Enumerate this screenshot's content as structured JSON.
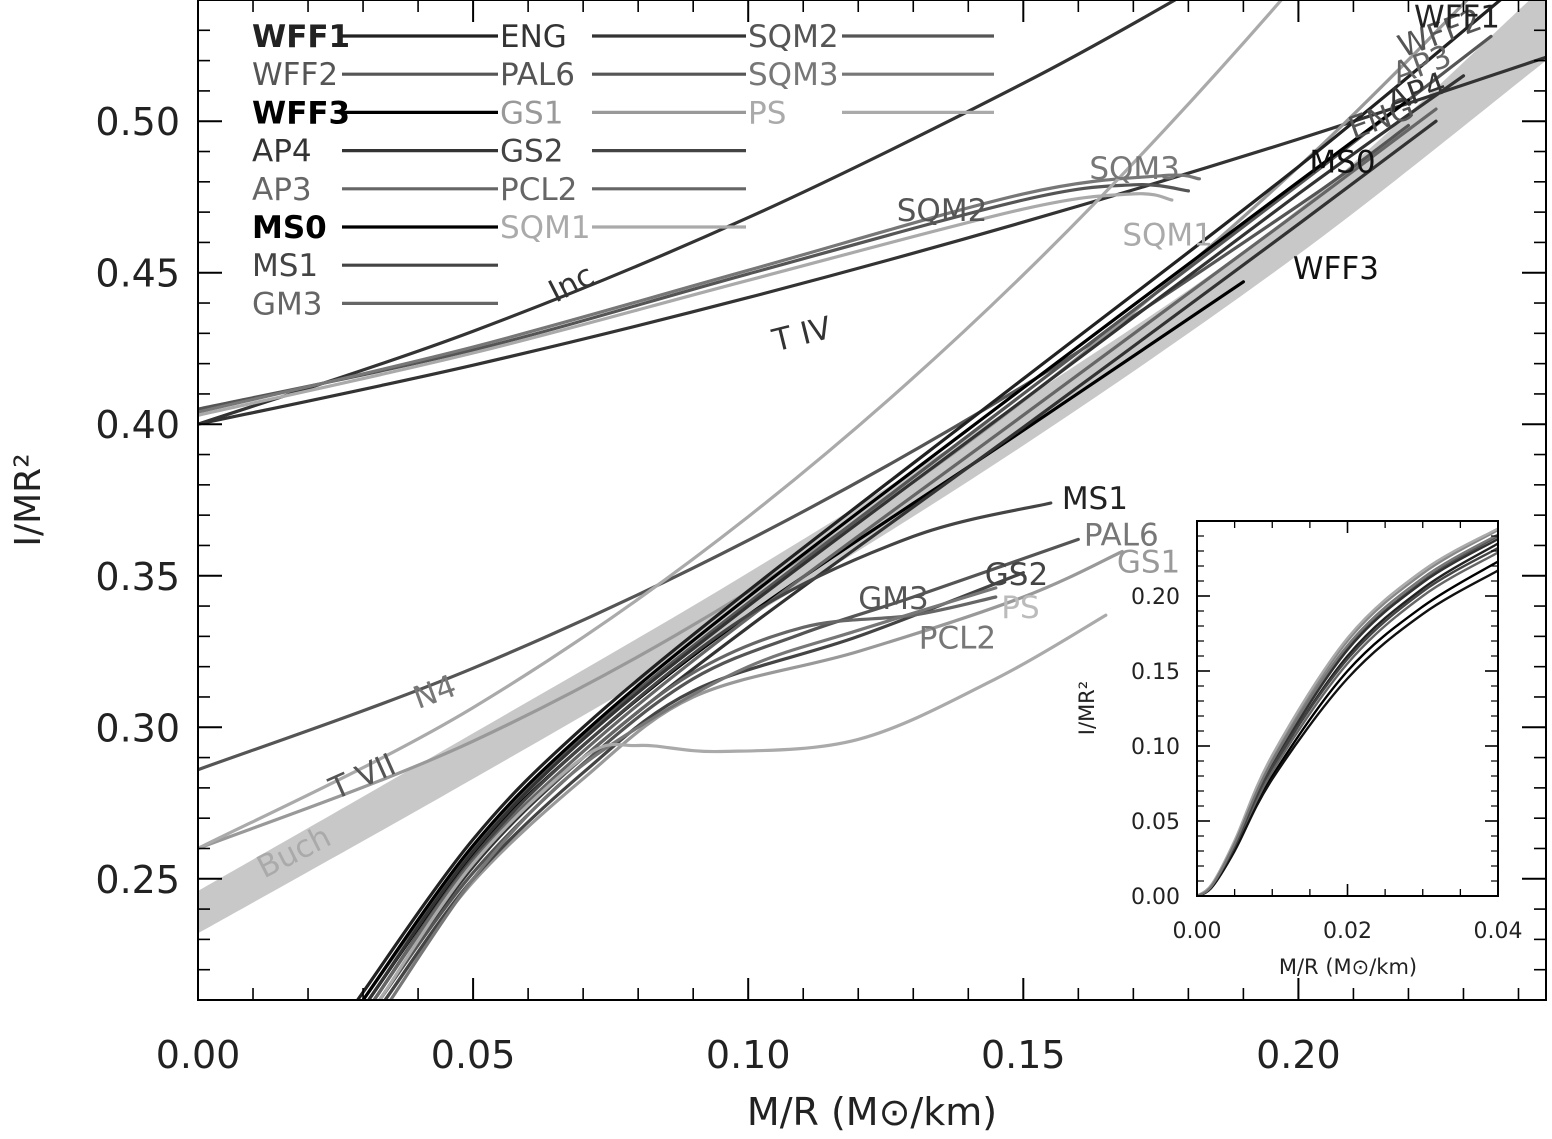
{
  "chart_data": [
    {
      "type": "line",
      "xlabel": "M/R (M⊙/km)",
      "ylabel": "I/MR²",
      "xlim": [
        0,
        0.245
      ],
      "ylim": [
        0.21,
        0.54
      ],
      "xticks": [
        0.0,
        0.05,
        0.1,
        0.15,
        0.2
      ],
      "xtick_labels": [
        "0.00",
        "0.05",
        "0.10",
        "0.15",
        "0.20"
      ],
      "yticks": [
        0.25,
        0.3,
        0.35,
        0.4,
        0.45,
        0.5
      ],
      "ytick_labels": [
        "0.25",
        "0.30",
        "0.35",
        "0.40",
        "0.45",
        "0.50"
      ],
      "grid": false,
      "legend_position": "top-left",
      "colors": {
        "black": "#111111",
        "dark": "#333333",
        "mid": "#555555",
        "gray": "#777777",
        "light": "#999999",
        "pale": "#b0b0b0",
        "band": "#c8c8c8"
      },
      "legend": [
        {
          "label": "WFF1",
          "color": "#222222"
        },
        {
          "label": "WFF2",
          "color": "#555555"
        },
        {
          "label": "WFF3",
          "color": "#000000"
        },
        {
          "label": "AP4",
          "color": "#333333"
        },
        {
          "label": "AP3",
          "color": "#666666"
        },
        {
          "label": "MS0",
          "color": "#000000"
        },
        {
          "label": "MS1",
          "color": "#444444"
        },
        {
          "label": "GM3",
          "color": "#666666"
        },
        {
          "label": "ENG",
          "color": "#333333"
        },
        {
          "label": "PAL6",
          "color": "#555555"
        },
        {
          "label": "GS1",
          "color": "#999999"
        },
        {
          "label": "GS2",
          "color": "#444444"
        },
        {
          "label": "PCL2",
          "color": "#666666"
        },
        {
          "label": "SQM1",
          "color": "#aaaaaa"
        },
        {
          "label": "SQM2",
          "color": "#555555"
        },
        {
          "label": "SQM3",
          "color": "#777777"
        },
        {
          "label": "PS",
          "color": "#aaaaaa"
        }
      ],
      "band": {
        "label": "",
        "x": [
          0.0,
          0.05,
          0.1,
          0.15,
          0.2,
          0.245
        ],
        "y_low": [
          0.232,
          0.283,
          0.336,
          0.393,
          0.456,
          0.52
        ],
        "y_high": [
          0.246,
          0.298,
          0.351,
          0.408,
          0.471,
          0.545
        ]
      },
      "series": [
        {
          "name": "Inc",
          "color": "#333333",
          "x": [
            0.0,
            0.05,
            0.1,
            0.15,
            0.18
          ],
          "y": [
            0.4,
            0.4307,
            0.4682,
            0.5125,
            0.5425
          ]
        },
        {
          "name": "T IV",
          "color": "#333333",
          "x": [
            0.0,
            0.05,
            0.1,
            0.15,
            0.2,
            0.245
          ],
          "y": [
            0.4,
            0.4195,
            0.4418,
            0.4667,
            0.4941,
            0.5211
          ]
        },
        {
          "name": "SQM2",
          "color": "#555555",
          "x": [
            0.0,
            0.05,
            0.1,
            0.15,
            0.17,
            0.18
          ],
          "y": [
            0.405,
            0.4245,
            0.4496,
            0.474,
            0.479,
            0.477
          ]
        },
        {
          "name": "SQM3",
          "color": "#777777",
          "x": [
            0.0,
            0.05,
            0.1,
            0.15,
            0.175,
            0.182
          ],
          "y": [
            0.404,
            0.4255,
            0.4508,
            0.476,
            0.482,
            0.481
          ]
        },
        {
          "name": "SQM1",
          "color": "#aaaaaa",
          "x": [
            0.0,
            0.05,
            0.1,
            0.15,
            0.17,
            0.177
          ],
          "y": [
            0.403,
            0.4235,
            0.4475,
            0.471,
            0.476,
            0.474
          ]
        },
        {
          "name": "N4",
          "color": "#555555",
          "x": [
            0.0,
            0.05,
            0.1,
            0.15,
            0.2,
            0.22
          ],
          "y": [
            0.286,
            0.3195,
            0.3617,
            0.4126,
            0.4722,
            0.4986
          ]
        },
        {
          "name": "T VII",
          "color": "#999999",
          "x": [
            0.0,
            0.05,
            0.1,
            0.15,
            0.2,
            0.245
          ],
          "y": [
            0.26,
            0.2954,
            0.3447,
            0.4078,
            0.4849,
            0.5667
          ]
        },
        {
          "name": "Buch",
          "color": "#aaaaaa",
          "x": [
            0.0,
            0.05,
            0.1,
            0.15,
            0.2,
            0.245
          ],
          "y": [
            0.26,
            0.3065,
            0.3695,
            0.4493,
            0.5465,
            0.6489
          ]
        },
        {
          "name": "WFF1",
          "color": "#222222",
          "x": [
            0.029,
            0.05,
            0.07,
            0.1,
            0.15,
            0.2,
            0.24
          ],
          "y": [
            0.21,
            0.263,
            0.3,
            0.345,
            0.415,
            0.485,
            0.545
          ]
        },
        {
          "name": "WFF2",
          "color": "#555555",
          "x": [
            0.03,
            0.05,
            0.07,
            0.1,
            0.15,
            0.2,
            0.235
          ],
          "y": [
            0.21,
            0.26,
            0.297,
            0.341,
            0.41,
            0.479,
            0.528
          ]
        },
        {
          "name": "WFF3",
          "color": "#000000",
          "x": [
            0.031,
            0.05,
            0.07,
            0.1,
            0.15,
            0.19
          ],
          "y": [
            0.21,
            0.258,
            0.294,
            0.337,
            0.398,
            0.447
          ]
        },
        {
          "name": "AP4",
          "color": "#333333",
          "x": [
            0.031,
            0.05,
            0.07,
            0.1,
            0.15,
            0.2,
            0.23
          ],
          "y": [
            0.21,
            0.259,
            0.296,
            0.34,
            0.408,
            0.476,
            0.515
          ]
        },
        {
          "name": "AP3",
          "color": "#666666",
          "x": [
            0.032,
            0.05,
            0.07,
            0.1,
            0.15,
            0.2,
            0.225
          ],
          "y": [
            0.21,
            0.256,
            0.292,
            0.336,
            0.403,
            0.47,
            0.504
          ]
        },
        {
          "name": "MS0",
          "color": "#000000",
          "x": [
            0.03,
            0.05,
            0.07,
            0.1,
            0.15,
            0.2,
            0.22
          ],
          "y": [
            0.21,
            0.261,
            0.298,
            0.343,
            0.412,
            0.48,
            0.507
          ]
        },
        {
          "name": "ENG",
          "color": "#333333",
          "x": [
            0.033,
            0.05,
            0.07,
            0.1,
            0.15,
            0.2,
            0.225
          ],
          "y": [
            0.21,
            0.254,
            0.29,
            0.333,
            0.399,
            0.466,
            0.5
          ]
        },
        {
          "name": "MS1",
          "color": "#444444",
          "x": [
            0.032,
            0.05,
            0.07,
            0.1,
            0.13,
            0.155
          ],
          "y": [
            0.21,
            0.257,
            0.294,
            0.337,
            0.363,
            0.374
          ]
        },
        {
          "name": "PAL6",
          "color": "#555555",
          "x": [
            0.033,
            0.05,
            0.07,
            0.09,
            0.11,
            0.13,
            0.16
          ],
          "y": [
            0.21,
            0.252,
            0.288,
            0.316,
            0.331,
            0.343,
            0.362
          ]
        },
        {
          "name": "GS1",
          "color": "#999999",
          "x": [
            0.034,
            0.05,
            0.07,
            0.09,
            0.12,
            0.15,
            0.168
          ],
          "y": [
            0.21,
            0.249,
            0.283,
            0.31,
            0.325,
            0.343,
            0.358
          ]
        },
        {
          "name": "GS2",
          "color": "#444444",
          "x": [
            0.034,
            0.05,
            0.07,
            0.09,
            0.12,
            0.15
          ],
          "y": [
            0.21,
            0.25,
            0.285,
            0.312,
            0.33,
            0.351
          ]
        },
        {
          "name": "GM3",
          "color": "#666666",
          "x": [
            0.032,
            0.05,
            0.07,
            0.09,
            0.11,
            0.13,
            0.145
          ],
          "y": [
            0.21,
            0.256,
            0.29,
            0.318,
            0.333,
            0.337,
            0.343
          ]
        },
        {
          "name": "PCL2",
          "color": "#777777",
          "x": [
            0.035,
            0.05,
            0.065,
            0.08,
            0.1,
            0.12,
            0.145
          ],
          "y": [
            0.21,
            0.25,
            0.28,
            0.3,
            0.32,
            0.332,
            0.346
          ]
        },
        {
          "name": "PS",
          "color": "#aaaaaa",
          "x": [
            0.033,
            0.05,
            0.07,
            0.08,
            0.095,
            0.12,
            0.145,
            0.165
          ],
          "y": [
            0.21,
            0.255,
            0.29,
            0.294,
            0.292,
            0.296,
            0.316,
            0.337
          ]
        }
      ],
      "annotations": [
        {
          "text": "Inc",
          "x": 0.065,
          "y": 0.44,
          "rotate": -27,
          "color": "#333333"
        },
        {
          "text": "T  IV",
          "x": 0.105,
          "y": 0.424,
          "rotate": -14,
          "color": "#333333"
        },
        {
          "text": "SQM2",
          "x": 0.127,
          "y": 0.467,
          "rotate": 0,
          "color": "#555555"
        },
        {
          "text": "SQM3",
          "x": 0.162,
          "y": 0.481,
          "rotate": 0,
          "color": "#777777"
        },
        {
          "text": "SQM1",
          "x": 0.168,
          "y": 0.459,
          "rotate": 0,
          "color": "#aaaaaa"
        },
        {
          "text": "N4",
          "x": 0.04,
          "y": 0.306,
          "rotate": -20,
          "color": "#777777"
        },
        {
          "text": "T  VII",
          "x": 0.025,
          "y": 0.276,
          "rotate": -24,
          "color": "#555555"
        },
        {
          "text": "Buch",
          "x": 0.012,
          "y": 0.25,
          "rotate": -27,
          "color": "#aaaaaa"
        },
        {
          "text": "MS1",
          "x": 0.157,
          "y": 0.372,
          "rotate": 0,
          "color": "#222222"
        },
        {
          "text": "PAL6",
          "x": 0.161,
          "y": 0.36,
          "rotate": 0,
          "color": "#777777"
        },
        {
          "text": "GS1",
          "x": 0.167,
          "y": 0.351,
          "rotate": 0,
          "color": "#999999"
        },
        {
          "text": "GS2",
          "x": 0.143,
          "y": 0.347,
          "rotate": 0,
          "color": "#444444"
        },
        {
          "text": "PS",
          "x": 0.146,
          "y": 0.336,
          "rotate": 0,
          "color": "#bbbbbb"
        },
        {
          "text": "GM3",
          "x": 0.12,
          "y": 0.339,
          "rotate": 0,
          "color": "#555555"
        },
        {
          "text": "PCL2",
          "x": 0.131,
          "y": 0.326,
          "rotate": 0,
          "color": "#777777"
        },
        {
          "text": "WFF3",
          "x": 0.199,
          "y": 0.448,
          "rotate": 0,
          "color": "#111111"
        },
        {
          "text": "MS0",
          "x": 0.202,
          "y": 0.483,
          "rotate": 0,
          "color": "#111111"
        },
        {
          "text": "ENG",
          "x": 0.21,
          "y": 0.494,
          "rotate": -20,
          "color": "#555555"
        },
        {
          "text": "AP4",
          "x": 0.217,
          "y": 0.503,
          "rotate": -20,
          "color": "#333333"
        },
        {
          "text": "AP3",
          "x": 0.218,
          "y": 0.512,
          "rotate": -20,
          "color": "#666666"
        },
        {
          "text": "WFF2",
          "x": 0.219,
          "y": 0.521,
          "rotate": -20,
          "color": "#555555"
        },
        {
          "text": "WFF1",
          "x": 0.221,
          "y": 0.531,
          "rotate": 0,
          "color": "#222222"
        }
      ]
    },
    {
      "type": "line",
      "xlabel": "M/R (M⊙/km)",
      "ylabel": "I/MR²",
      "xlim": [
        0,
        0.04
      ],
      "ylim": [
        0,
        0.25
      ],
      "xticks": [
        0.0,
        0.02,
        0.04
      ],
      "xtick_labels": [
        "0.00",
        "0.02",
        "0.04"
      ],
      "yticks": [
        0.0,
        0.05,
        0.1,
        0.15,
        0.2
      ],
      "ytick_labels": [
        "0.00",
        "0.05",
        "0.10",
        "0.15",
        "0.20"
      ],
      "grid": false,
      "series": [
        {
          "color": "#222222",
          "x": [
            0.0,
            0.002,
            0.005,
            0.01,
            0.02,
            0.03,
            0.04
          ],
          "y": [
            0.0,
            0.007,
            0.033,
            0.085,
            0.16,
            0.205,
            0.235
          ]
        },
        {
          "color": "#555555",
          "x": [
            0.0,
            0.002,
            0.005,
            0.01,
            0.02,
            0.03,
            0.04
          ],
          "y": [
            0.0,
            0.007,
            0.034,
            0.088,
            0.165,
            0.21,
            0.24
          ]
        },
        {
          "color": "#000000",
          "x": [
            0.0,
            0.002,
            0.005,
            0.01,
            0.02,
            0.03,
            0.04
          ],
          "y": [
            0.0,
            0.006,
            0.031,
            0.08,
            0.15,
            0.193,
            0.223
          ]
        },
        {
          "color": "#333333",
          "x": [
            0.0,
            0.002,
            0.005,
            0.01,
            0.02,
            0.03,
            0.04
          ],
          "y": [
            0.0,
            0.007,
            0.034,
            0.087,
            0.164,
            0.209,
            0.238
          ]
        },
        {
          "color": "#666666",
          "x": [
            0.0,
            0.002,
            0.005,
            0.01,
            0.02,
            0.03,
            0.04
          ],
          "y": [
            0.0,
            0.007,
            0.032,
            0.083,
            0.155,
            0.2,
            0.229
          ]
        },
        {
          "color": "#111111",
          "x": [
            0.0,
            0.002,
            0.005,
            0.01,
            0.02,
            0.03,
            0.04
          ],
          "y": [
            0.0,
            0.006,
            0.03,
            0.078,
            0.145,
            0.188,
            0.217
          ]
        },
        {
          "color": "#444444",
          "x": [
            0.0,
            0.002,
            0.005,
            0.01,
            0.02,
            0.03,
            0.04
          ],
          "y": [
            0.0,
            0.007,
            0.033,
            0.086,
            0.158,
            0.203,
            0.232
          ]
        },
        {
          "color": "#888888",
          "x": [
            0.0,
            0.002,
            0.005,
            0.01,
            0.02,
            0.03,
            0.04
          ],
          "y": [
            0.0,
            0.008,
            0.036,
            0.092,
            0.17,
            0.215,
            0.244
          ]
        },
        {
          "color": "#aaaaaa",
          "x": [
            0.0,
            0.002,
            0.005,
            0.01,
            0.02,
            0.03,
            0.04
          ],
          "y": [
            0.0,
            0.008,
            0.037,
            0.094,
            0.172,
            0.217,
            0.245
          ]
        },
        {
          "color": "#777777",
          "x": [
            0.0,
            0.002,
            0.005,
            0.01,
            0.02,
            0.03,
            0.04
          ],
          "y": [
            0.0,
            0.007,
            0.035,
            0.09,
            0.167,
            0.212,
            0.241
          ]
        }
      ]
    }
  ]
}
